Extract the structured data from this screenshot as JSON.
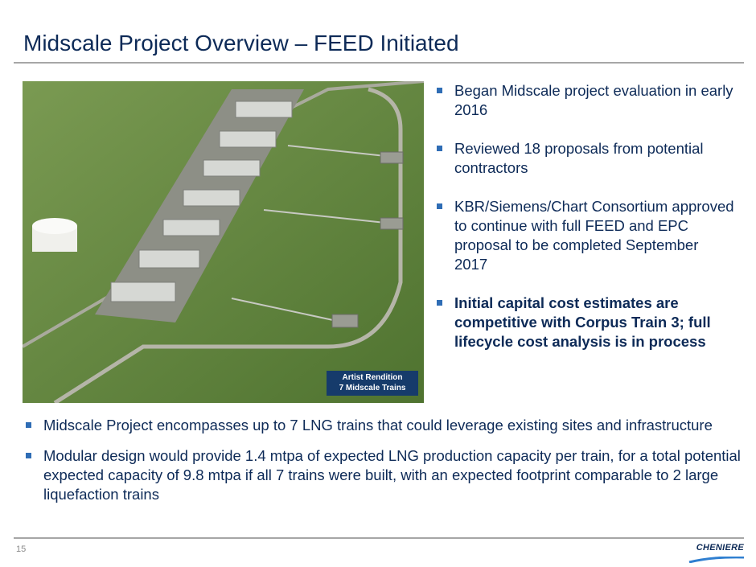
{
  "slide": {
    "title": "Midscale Project Overview – FEED Initiated",
    "page_number": "15",
    "image_caption": {
      "line1": "Artist Rendition",
      "line2": "7 Midscale Trains"
    },
    "right_bullets": [
      "Began Midscale project evaluation in early 2016",
      "Reviewed 18 proposals from potential contractors",
      "KBR/Siemens/Chart Consortium approved to continue with full FEED and EPC proposal to be completed September 2017",
      "Initial capital cost estimates are competitive with Corpus Train 3; full lifecycle cost analysis is in process"
    ],
    "bottom_bullets": [
      "Midscale Project encompasses up to 7 LNG trains that could leverage existing sites and infrastructure",
      "Modular design would provide 1.4 mtpa of expected LNG production capacity per train, for a total potential expected capacity of 9.8 mtpa if all 7 trains were built, with an expected footprint comparable to 2 large liquefaction trains"
    ],
    "logo_text": "CHENIERE",
    "colors": {
      "title": "#0d2a57",
      "bullet": "#2f6db5",
      "caption_bg": "#163b6b",
      "rule": "#a6a6a6"
    }
  }
}
